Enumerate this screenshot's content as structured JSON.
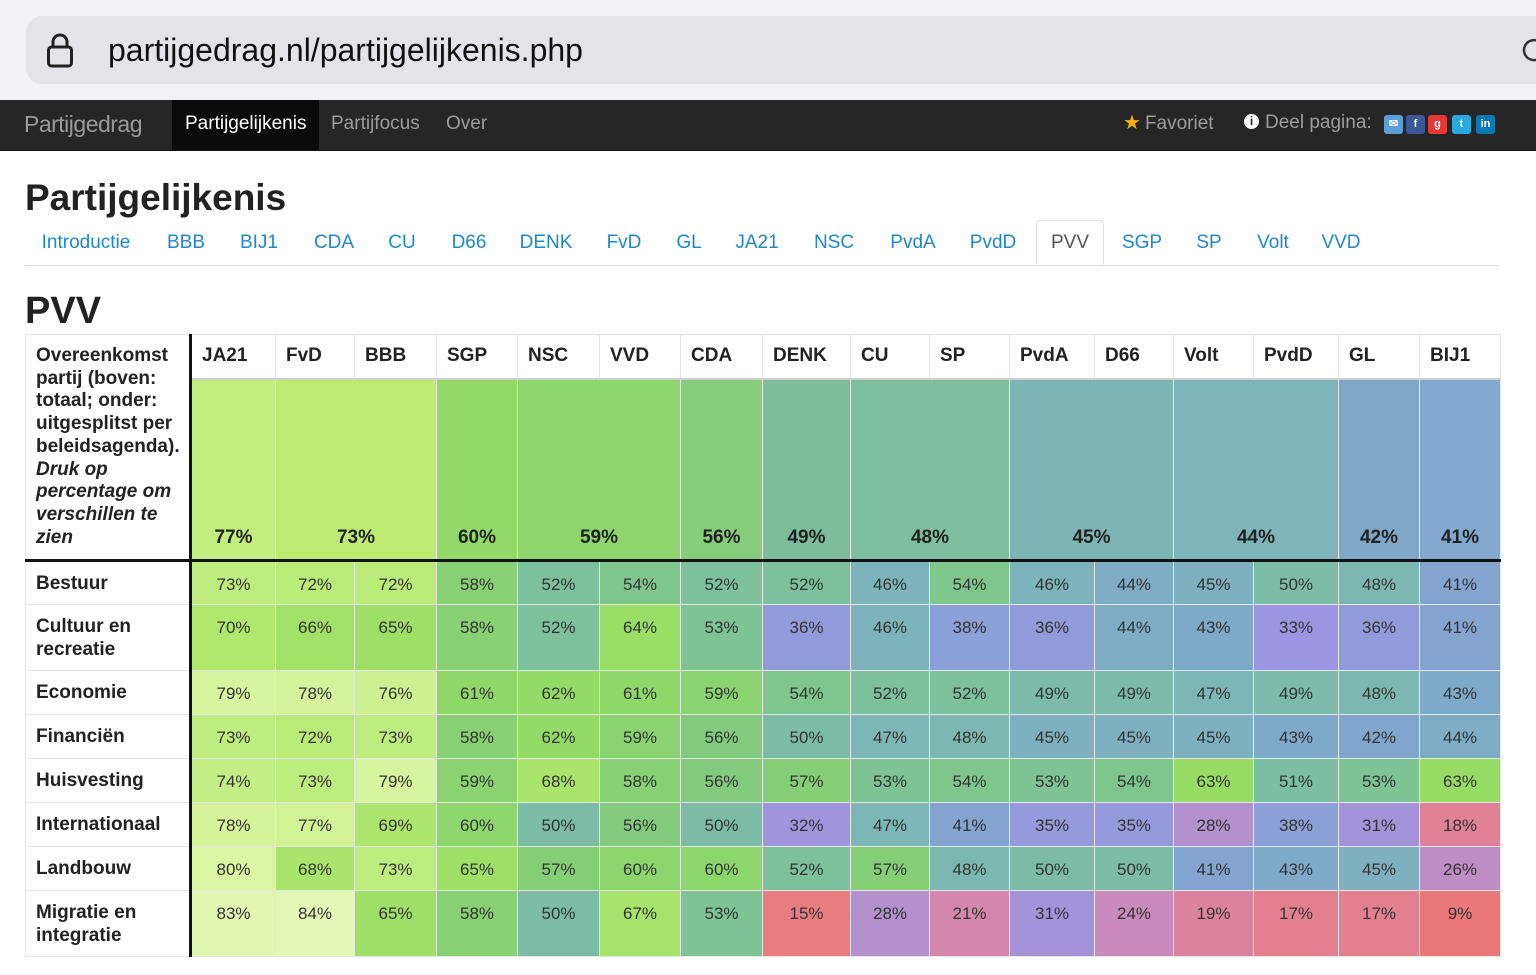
{
  "browser": {
    "url": "partijgedrag.nl/partijgelijkenis.php"
  },
  "nav": {
    "brand": "Partijgedrag",
    "links": [
      "Partijgelijkenis",
      "Partijfocus",
      "Over"
    ],
    "favorite": "Favoriet",
    "share": "Deel pagina:"
  },
  "page": {
    "title": "Partijgelijkenis",
    "section": "PVV"
  },
  "tabs": [
    "Introductie",
    "BBB",
    "BIJ1",
    "CDA",
    "CU",
    "D66",
    "DENK",
    "FvD",
    "GL",
    "JA21",
    "NSC",
    "PvdA",
    "PvdD",
    "PVV",
    "SGP",
    "SP",
    "Volt",
    "VVD"
  ],
  "active_tab": "PVV",
  "table": {
    "corner_text": "Overeenkomst partij (boven: totaal; onder: uitgesplitst per beleidsagenda).",
    "corner_hint": "Druk op percentage om verschillen te zien",
    "columns": [
      "JA21",
      "FvD",
      "BBB",
      "SGP",
      "NSC",
      "VVD",
      "CDA",
      "DENK",
      "CU",
      "SP",
      "PvdA",
      "D66",
      "Volt",
      "PvdD",
      "GL",
      "BIJ1"
    ],
    "totals": [
      {
        "value": "77%",
        "span": 1,
        "color": "#c2ee80"
      },
      {
        "value": "73%",
        "span": 2,
        "color": "#bcea73"
      },
      {
        "value": "60%",
        "span": 1,
        "color": "#93d96a"
      },
      {
        "value": "59%",
        "span": 2,
        "color": "#8fd56d"
      },
      {
        "value": "56%",
        "span": 1,
        "color": "#85cc7b"
      },
      {
        "value": "49%",
        "span": 1,
        "color": "#7dbd9b"
      },
      {
        "value": "48%",
        "span": 2,
        "color": "#7dbf9e"
      },
      {
        "value": "45%",
        "span": 2,
        "color": "#7fb4b5"
      },
      {
        "value": "44%",
        "span": 2,
        "color": "#7fb4ba"
      },
      {
        "value": "42%",
        "span": 1,
        "color": "#7fa7c7"
      },
      {
        "value": "41%",
        "span": 1,
        "color": "#82a8d0"
      }
    ],
    "rows": [
      {
        "label": "Bestuur",
        "values": [
          "73%",
          "72%",
          "72%",
          "58%",
          "52%",
          "54%",
          "52%",
          "52%",
          "46%",
          "54%",
          "46%",
          "44%",
          "45%",
          "50%",
          "48%",
          "41%"
        ]
      },
      {
        "label": "Cultuur en recreatie",
        "values": [
          "70%",
          "66%",
          "65%",
          "58%",
          "52%",
          "64%",
          "53%",
          "36%",
          "46%",
          "38%",
          "36%",
          "44%",
          "43%",
          "33%",
          "36%",
          "41%"
        ]
      },
      {
        "label": "Economie",
        "values": [
          "79%",
          "78%",
          "76%",
          "61%",
          "62%",
          "61%",
          "59%",
          "54%",
          "52%",
          "52%",
          "49%",
          "49%",
          "47%",
          "49%",
          "48%",
          "43%"
        ]
      },
      {
        "label": "Financiën",
        "values": [
          "73%",
          "72%",
          "73%",
          "58%",
          "62%",
          "59%",
          "56%",
          "50%",
          "47%",
          "48%",
          "45%",
          "45%",
          "45%",
          "43%",
          "42%",
          "44%"
        ]
      },
      {
        "label": "Huisvesting",
        "values": [
          "74%",
          "73%",
          "79%",
          "59%",
          "68%",
          "58%",
          "56%",
          "57%",
          "53%",
          "54%",
          "53%",
          "54%",
          "63%",
          "51%",
          "53%",
          "63%"
        ]
      },
      {
        "label": "Internationaal",
        "values": [
          "78%",
          "77%",
          "69%",
          "60%",
          "50%",
          "56%",
          "50%",
          "32%",
          "47%",
          "41%",
          "35%",
          "35%",
          "28%",
          "38%",
          "31%",
          "18%"
        ]
      },
      {
        "label": "Landbouw",
        "values": [
          "80%",
          "68%",
          "73%",
          "65%",
          "57%",
          "60%",
          "60%",
          "52%",
          "57%",
          "48%",
          "50%",
          "50%",
          "41%",
          "43%",
          "45%",
          "26%"
        ]
      },
      {
        "label": "Migratie en integratie",
        "values": [
          "83%",
          "84%",
          "65%",
          "58%",
          "50%",
          "67%",
          "53%",
          "15%",
          "28%",
          "21%",
          "31%",
          "24%",
          "19%",
          "17%",
          "17%",
          "9%"
        ]
      }
    ]
  }
}
